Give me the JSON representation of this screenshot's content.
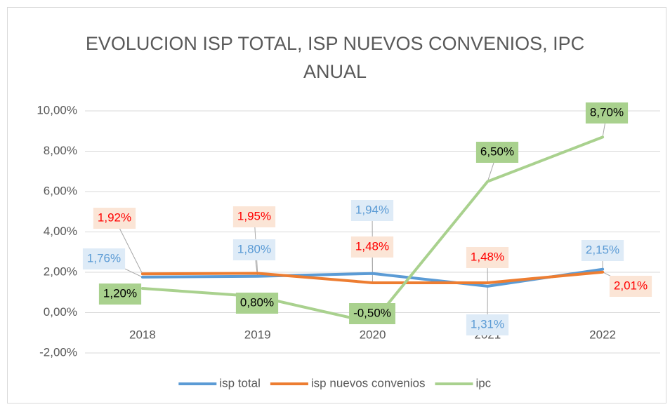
{
  "chart_data": {
    "type": "line",
    "title": "EVOLUCION ISP TOTAL, ISP NUEVOS CONVENIOS, IPC ANUAL",
    "categories": [
      "2018",
      "2019",
      "2020",
      "2021",
      "2022"
    ],
    "series": [
      {
        "name": "isp total",
        "color": "#5b9bd5",
        "values": [
          1.76,
          1.8,
          1.94,
          1.31,
          2.15
        ],
        "value_labels": [
          "1,76%",
          "1,80%",
          "1,94%",
          "1,31%",
          "2,15%"
        ]
      },
      {
        "name": "isp nuevos convenios",
        "color": "#ed7d31",
        "values": [
          1.92,
          1.95,
          1.48,
          1.48,
          2.01
        ],
        "value_labels": [
          "1,92%",
          "1,95%",
          "1,48%",
          "1,48%",
          "2,01%"
        ]
      },
      {
        "name": "ipc",
        "color": "#a9d18e",
        "values": [
          1.2,
          0.8,
          -0.5,
          6.5,
          8.7
        ],
        "value_labels": [
          "1,20%",
          "0,80%",
          "-0,50%",
          "6,50%",
          "8,70%"
        ]
      }
    ],
    "ylim": [
      -2,
      10
    ],
    "yticks": [
      {
        "value": -2,
        "label": "-2,00%"
      },
      {
        "value": 0,
        "label": "0,00%"
      },
      {
        "value": 2,
        "label": "2,00%"
      },
      {
        "value": 4,
        "label": "4,00%"
      },
      {
        "value": 6,
        "label": "6,00%"
      },
      {
        "value": 8,
        "label": "8,00%"
      },
      {
        "value": 10,
        "label": "10,00%"
      }
    ],
    "grid": true,
    "legend": "bottom"
  }
}
